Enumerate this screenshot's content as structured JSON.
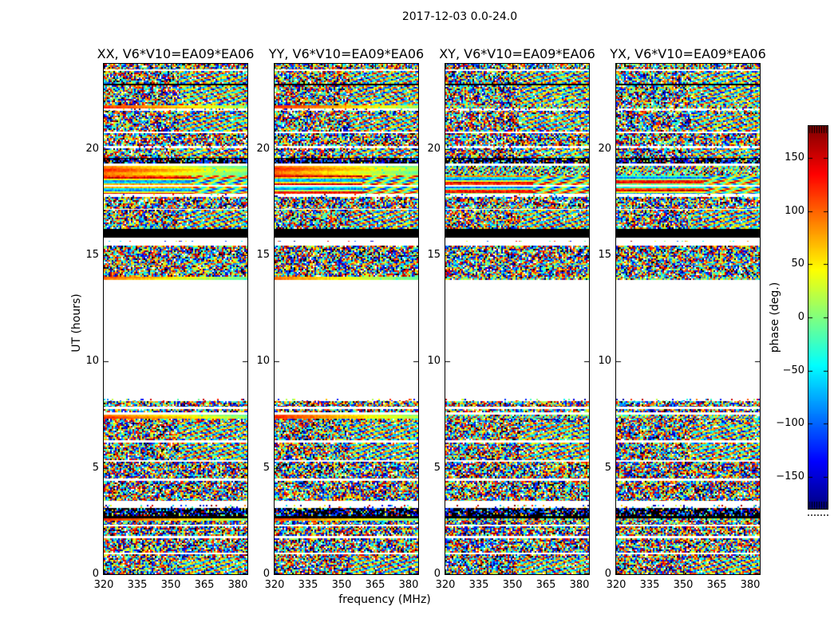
{
  "figure": {
    "title": "2017-12-03 0.0-24.0",
    "background": "#ffffff"
  },
  "panels": [
    {
      "title": "XX, V6*V10=EA09*EA06",
      "pol": "XX",
      "smooth_features": true
    },
    {
      "title": "YY, V6*V10=EA09*EA06",
      "pol": "YY",
      "smooth_features": true
    },
    {
      "title": "XY, V6*V10=EA09*EA06",
      "pol": "XY",
      "smooth_features": false
    },
    {
      "title": "YX, V6*V10=EA09*EA06",
      "pol": "YX",
      "smooth_features": false
    }
  ],
  "axes": {
    "xlabel": "frequency (MHz)",
    "ylabel": "UT (hours)",
    "xticks": [
      "320",
      "335",
      "350",
      "365",
      "380"
    ],
    "xtick_values": [
      320,
      335,
      350,
      365,
      380
    ],
    "yticks": [
      "0",
      "5",
      "10",
      "15",
      "20"
    ],
    "ytick_values": [
      0,
      5,
      10,
      15,
      20
    ],
    "xrange": [
      320,
      384
    ],
    "yrange": [
      0,
      24
    ]
  },
  "colorbar": {
    "label": "phase (deg.)",
    "ticks": [
      "150",
      "100",
      "50",
      "0",
      "−50",
      "−100",
      "−150"
    ],
    "tick_values": [
      150,
      100,
      50,
      0,
      -50,
      -100,
      -150
    ],
    "range": [
      -180,
      180
    ],
    "colormap": "jet",
    "over_cap_color": "#8b0000",
    "under_cap_color": "#00008b"
  },
  "chart_data": {
    "type": "heatmap",
    "title": "2017-12-03 0.0-24.0",
    "xlabel": "frequency (MHz)",
    "ylabel": "UT (hours)",
    "zlabel": "phase (deg.)",
    "panels": [
      "XX",
      "YY",
      "XY",
      "YX"
    ],
    "baseline": "V6*V10=EA09*EA06",
    "x_range_mhz": [
      320,
      384
    ],
    "y_range_hours": [
      0,
      24
    ],
    "z_range_deg": [
      -180,
      180
    ],
    "bands_format": "[from_hour_top, to_hour_bottom, kind]; kinds: noise=random phase, wave=noise with diagonal fringe pattern on right, hstripes=smooth horizontal phase stripes, smooth=coherent orange-to-green phase drift (XX/YY only), sparse=mostly blank with dots, darknoise=mostly black with dots, black=flagged solid, white=no data",
    "bands": [
      [
        24.0,
        23.74,
        "noise"
      ],
      [
        23.74,
        23.66,
        "white"
      ],
      [
        23.66,
        23.06,
        "wave"
      ],
      [
        23.06,
        22.99,
        "black"
      ],
      [
        22.99,
        22.5,
        "wave"
      ],
      [
        22.5,
        22.05,
        "wave"
      ],
      [
        22.05,
        21.9,
        "smooth"
      ],
      [
        21.9,
        21.79,
        "sparse"
      ],
      [
        21.79,
        21.64,
        "noise"
      ],
      [
        21.64,
        20.81,
        "wave"
      ],
      [
        20.81,
        20.74,
        "white"
      ],
      [
        20.74,
        20.14,
        "noise"
      ],
      [
        20.14,
        20.03,
        "sparse"
      ],
      [
        20.03,
        19.58,
        "wave"
      ],
      [
        19.58,
        19.52,
        "black"
      ],
      [
        19.52,
        19.31,
        "darknoise"
      ],
      [
        19.31,
        19.2,
        "white"
      ],
      [
        19.2,
        18.75,
        "smooth"
      ],
      [
        18.75,
        17.89,
        "hstripes"
      ],
      [
        17.89,
        17.74,
        "sparse"
      ],
      [
        17.74,
        17.18,
        "noise"
      ],
      [
        17.18,
        17.14,
        "white"
      ],
      [
        17.14,
        16.24,
        "wave"
      ],
      [
        16.24,
        15.83,
        "black"
      ],
      [
        15.83,
        15.68,
        "white"
      ],
      [
        15.68,
        15.64,
        "sparse"
      ],
      [
        15.64,
        15.45,
        "white"
      ],
      [
        15.45,
        14.7,
        "noise"
      ],
      [
        14.7,
        14.51,
        "wave"
      ],
      [
        14.51,
        14.14,
        "noise"
      ],
      [
        14.14,
        13.99,
        "noise"
      ],
      [
        13.99,
        13.84,
        "smooth"
      ],
      [
        13.84,
        8.25,
        "white"
      ],
      [
        8.25,
        8.14,
        "sparse"
      ],
      [
        8.14,
        7.88,
        "noise"
      ],
      [
        7.88,
        7.76,
        "white"
      ],
      [
        7.76,
        7.61,
        "noise"
      ],
      [
        7.61,
        7.5,
        "white"
      ],
      [
        7.5,
        7.31,
        "smooth"
      ],
      [
        7.31,
        7.13,
        "noise"
      ],
      [
        7.13,
        6.3,
        "wave"
      ],
      [
        6.3,
        6.19,
        "white"
      ],
      [
        6.19,
        5.36,
        "wave"
      ],
      [
        5.36,
        5.28,
        "white"
      ],
      [
        5.28,
        4.5,
        "noise"
      ],
      [
        4.5,
        4.39,
        "white"
      ],
      [
        4.39,
        3.45,
        "noise"
      ],
      [
        3.45,
        3.26,
        "white"
      ],
      [
        3.26,
        3.11,
        "sparse"
      ],
      [
        3.11,
        2.74,
        "darknoise"
      ],
      [
        2.74,
        2.63,
        "black"
      ],
      [
        2.63,
        2.51,
        "smooth"
      ],
      [
        2.51,
        2.33,
        "noise"
      ],
      [
        2.33,
        2.25,
        "white"
      ],
      [
        2.25,
        1.8,
        "noise"
      ],
      [
        1.8,
        1.69,
        "white"
      ],
      [
        1.69,
        1.01,
        "noise"
      ],
      [
        1.01,
        0.94,
        "white"
      ],
      [
        0.94,
        0.75,
        "noise"
      ],
      [
        0.75,
        0.0,
        "wave"
      ]
    ]
  }
}
